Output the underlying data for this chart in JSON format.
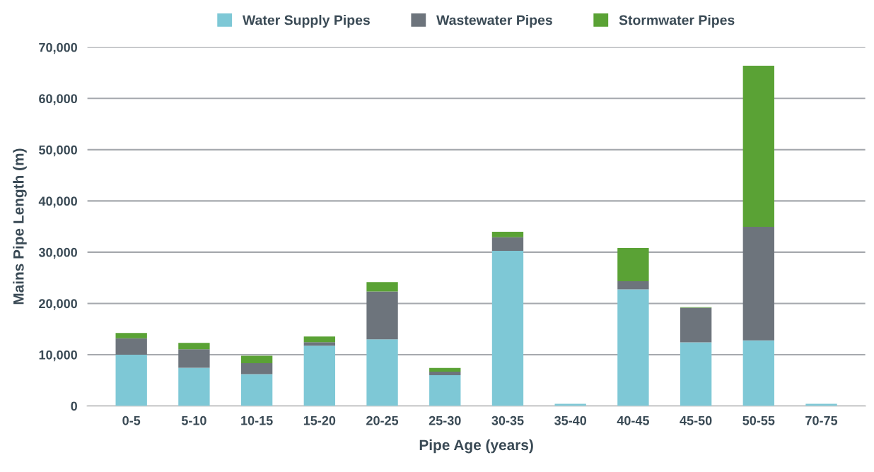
{
  "chart_data": {
    "type": "bar",
    "stacked": true,
    "xlabel": "Pipe Age (years)",
    "ylabel": "Mains Pipe Length (m)",
    "categories": [
      "0-5",
      "5-10",
      "10-15",
      "15-20",
      "20-25",
      "25-30",
      "30-35",
      "35-40",
      "40-45",
      "45-50",
      "50-55",
      "70-75"
    ],
    "series": [
      {
        "name": "Water Supply Pipes",
        "color": "#7ec8d6",
        "values": [
          10000,
          7450,
          6200,
          11750,
          13000,
          6000,
          30250,
          400,
          22750,
          12400,
          12800,
          400
        ]
      },
      {
        "name": "Wastewater Pipes",
        "color": "#6d747c",
        "values": [
          3200,
          3600,
          2150,
          700,
          9350,
          700,
          2650,
          null,
          1600,
          6750,
          22150,
          null
        ]
      },
      {
        "name": "Stormwater Pipes",
        "color": "#5aa235",
        "values": [
          1050,
          1250,
          1450,
          1100,
          1800,
          700,
          1100,
          null,
          6450,
          100,
          31450,
          null
        ]
      }
    ],
    "ylim": [
      0,
      70000
    ],
    "yticks": [
      {
        "value": 0,
        "label": "0"
      },
      {
        "value": 10000,
        "label": "10,000"
      },
      {
        "value": 20000,
        "label": "20,000"
      },
      {
        "value": 30000,
        "label": "30,000"
      },
      {
        "value": 40000,
        "label": "40,000"
      },
      {
        "value": 50000,
        "label": "50,000"
      },
      {
        "value": 60000,
        "label": "60,000"
      },
      {
        "value": 70000,
        "label": "70,000"
      }
    ],
    "grid": "y",
    "legend": "top"
  }
}
